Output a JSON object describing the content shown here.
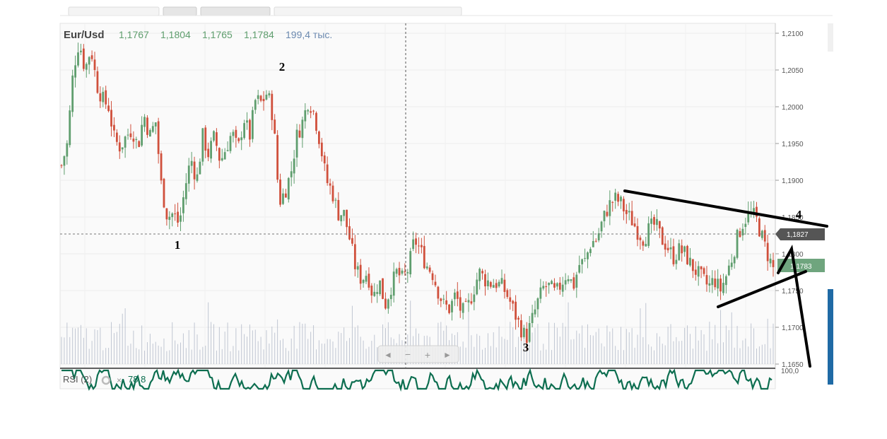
{
  "colors": {
    "up": "#5f9e6e",
    "down": "#d0503c",
    "volume": "#9aa4b8",
    "rsi": "#0d6e50",
    "ohlc_text": "#5f9e6e",
    "volume_text": "#6c8ab0",
    "current_price_badge": "#555555",
    "last_price_badge": "#6fa57e"
  },
  "header": {
    "symbol": "Eur/Usd",
    "open": "1,1767",
    "high": "1,1804",
    "low": "1,1765",
    "close": "1,1784",
    "volume": "199,4 тыс."
  },
  "price_axis": {
    "ticks": [
      "1,2100",
      "1,2050",
      "1,2000",
      "1,1950",
      "1,1900",
      "1,1850",
      "1,1800",
      "1,1750",
      "1,1700",
      "1,1650"
    ],
    "current_badge": "1,1827",
    "last_badge": "1,1783"
  },
  "nav_controls": [
    "◄",
    "−",
    "+",
    "►"
  ],
  "rsi_panel": {
    "label": "RSI (2)",
    "value": "78,8",
    "axis_top": "100,0",
    "gear_icon": "gear-icon",
    "close_icon": "close-icon"
  },
  "annotations": {
    "wave_labels": [
      "1",
      "2",
      "3",
      "4"
    ]
  },
  "chart_data": {
    "type": "candlestick",
    "title": "Eur/Usd",
    "ylim": [
      1.1645,
      1.2105
    ],
    "grid": true,
    "key_points": [
      {
        "label": "1",
        "value": 1.184
      },
      {
        "label": "2",
        "value": 1.2035
      },
      {
        "label": "3",
        "value": 1.1665
      },
      {
        "label": "4",
        "value": 1.186
      }
    ],
    "path": [
      1.192,
      1.195,
      1.205,
      1.209,
      1.205,
      1.208,
      1.203,
      1.201,
      1.2,
      1.1955,
      1.1945,
      1.196,
      1.197,
      1.1945,
      1.199,
      1.196,
      1.198,
      1.189,
      1.185,
      1.1855,
      1.184,
      1.189,
      1.193,
      1.19,
      1.196,
      1.1935,
      1.196,
      1.1925,
      1.1945,
      1.1965,
      1.194,
      1.1985,
      1.196,
      1.201,
      1.2005,
      1.202,
      1.1985,
      1.187,
      1.1885,
      1.191,
      1.196,
      1.198,
      1.201,
      1.199,
      1.195,
      1.19,
      1.1885,
      1.1855,
      1.1855,
      1.182,
      1.178,
      1.1765,
      1.1775,
      1.174,
      1.1765,
      1.173,
      1.1755,
      1.1775,
      1.1765,
      1.178,
      1.182,
      1.1805,
      1.1785,
      1.1775,
      1.175,
      1.173,
      1.1725,
      1.1745,
      1.172,
      1.1725,
      1.175,
      1.1775,
      1.1765,
      1.176,
      1.176,
      1.1755,
      1.174,
      1.172,
      1.17,
      1.1685,
      1.171,
      1.1735,
      1.1755,
      1.1755,
      1.1745,
      1.176,
      1.1775,
      1.1755,
      1.1785,
      1.179,
      1.1815,
      1.182,
      1.1845,
      1.1865,
      1.1875,
      1.187,
      1.1855,
      1.1845,
      1.183,
      1.182,
      1.1835,
      1.184,
      1.182,
      1.181,
      1.1795,
      1.1805,
      1.18,
      1.1785,
      1.1775,
      1.1765,
      1.1755,
      1.1765,
      1.175,
      1.177,
      1.1795,
      1.1825,
      1.1845,
      1.1855,
      1.185,
      1.1825,
      1.18,
      1.178
    ]
  }
}
